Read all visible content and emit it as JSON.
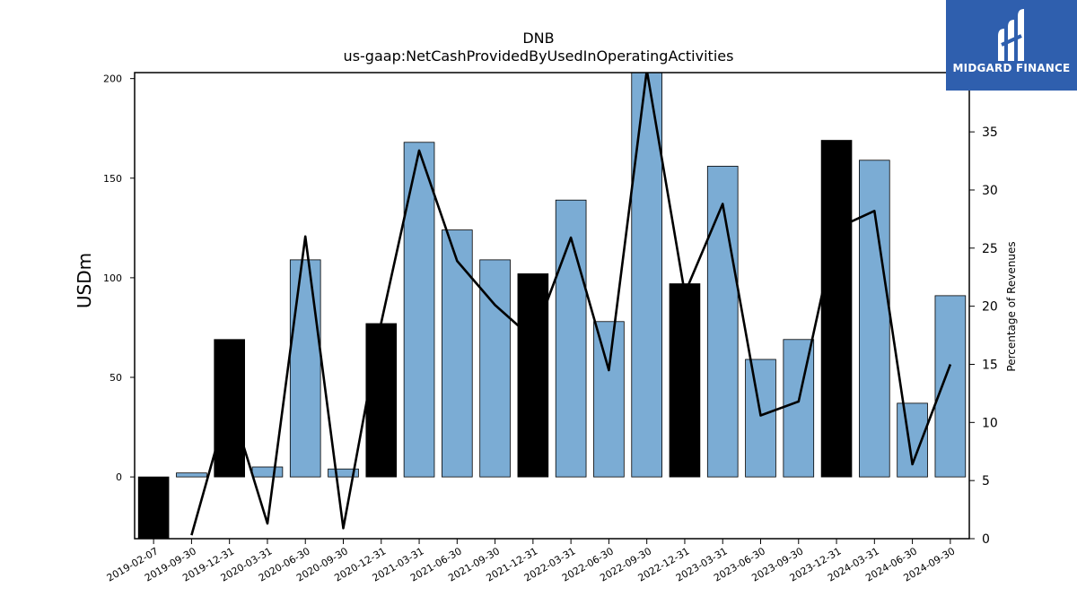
{
  "header": {
    "title": "DNB",
    "subtitle": "us-gaap:NetCashProvidedByUsedInOperatingActivities"
  },
  "logo": {
    "text": "MIDGARD FINANCE",
    "bg_color": "#2f5fae"
  },
  "chart_data": {
    "type": "bar",
    "categories": [
      "2019-02-07",
      "2019-09-30",
      "2019-12-31",
      "2020-03-31",
      "2020-06-30",
      "2020-09-30",
      "2020-12-31",
      "2021-03-31",
      "2021-06-30",
      "2021-09-30",
      "2021-12-31",
      "2022-03-31",
      "2022-06-30",
      "2022-09-30",
      "2022-12-31",
      "2023-03-31",
      "2023-06-30",
      "2023-09-30",
      "2023-12-31",
      "2024-03-31",
      "2024-06-30",
      "2024-09-30"
    ],
    "series": [
      {
        "values": [
          -32,
          2,
          69,
          5,
          109,
          4,
          77,
          168,
          124,
          109,
          102,
          139,
          78,
          203,
          97,
          156,
          59,
          69,
          169,
          159,
          37,
          91
        ],
        "axis": "left"
      },
      {
        "values": [
          null,
          0.3,
          11.9,
          1.3,
          26,
          0.9,
          18.6,
          33.4,
          23.9,
          20.1,
          17.2,
          25.9,
          14.5,
          40.3,
          21.1,
          28.8,
          10.6,
          11.8,
          26.7,
          28.2,
          6.4,
          15.0
        ],
        "axis": "right"
      }
    ],
    "bar_colors": [
      "#000000",
      "#7bacd4",
      "#000000",
      "#7bacd4",
      "#7bacd4",
      "#7bacd4",
      "#000000",
      "#7bacd4",
      "#7bacd4",
      "#7bacd4",
      "#000000",
      "#7bacd4",
      "#7bacd4",
      "#7bacd4",
      "#000000",
      "#7bacd4",
      "#7bacd4",
      "#7bacd4",
      "#000000",
      "#7bacd4",
      "#7bacd4",
      "#7bacd4"
    ],
    "ylabel": "USDm",
    "y2label": "Percentage of Revenues",
    "ylim": [
      -31,
      203
    ],
    "y2lim": [
      0,
      40.1
    ],
    "yticks": [
      0,
      50,
      100,
      150,
      200
    ],
    "y2ticks": [
      0,
      5,
      10,
      15,
      20,
      25,
      30,
      35
    ],
    "grid": false,
    "legend": "none"
  }
}
